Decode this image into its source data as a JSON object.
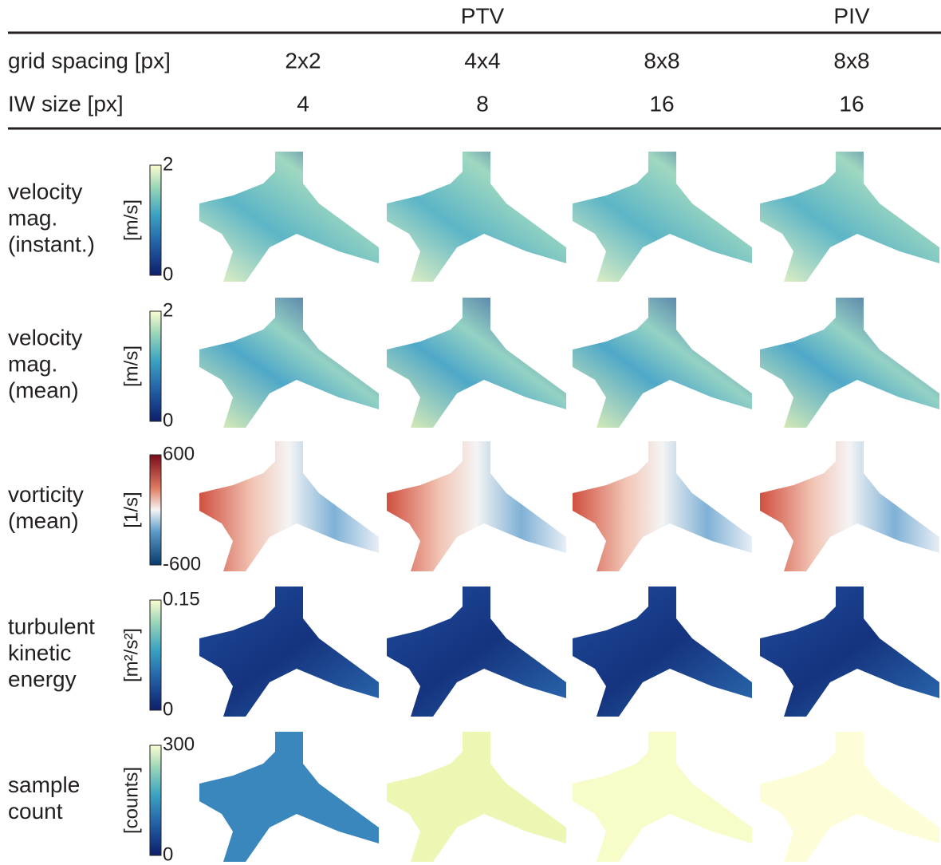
{
  "header": {
    "methods": [
      "PTV",
      "PIV"
    ],
    "rows": [
      {
        "label": "grid spacing [px]",
        "values": [
          "2x2",
          "4x4",
          "8x8",
          "8x8"
        ]
      },
      {
        "label": "IW size [px]",
        "values": [
          4,
          8,
          16,
          16
        ]
      }
    ]
  },
  "rows": [
    {
      "label": [
        "velocity",
        "mag.",
        "(instant.)"
      ],
      "unit": "[m/s]",
      "cbar_max": 2,
      "cbar_min": 0
    },
    {
      "label": [
        "velocity",
        "mag.",
        "(mean)"
      ],
      "unit": "[m/s]",
      "cbar_max": 2,
      "cbar_min": 0
    },
    {
      "label": [
        "vorticity",
        "(mean)"
      ],
      "unit": "[1/s]",
      "cbar_max": 600,
      "cbar_min": -600
    },
    {
      "label": [
        "turbulent",
        "kinetic",
        "energy"
      ],
      "unit": "[m²/s²]",
      "cbar_max": 0.15,
      "cbar_min": 0
    },
    {
      "label": [
        "sample",
        "count"
      ],
      "unit": "[counts]",
      "cbar_max": 300,
      "cbar_min": 0
    }
  ]
}
